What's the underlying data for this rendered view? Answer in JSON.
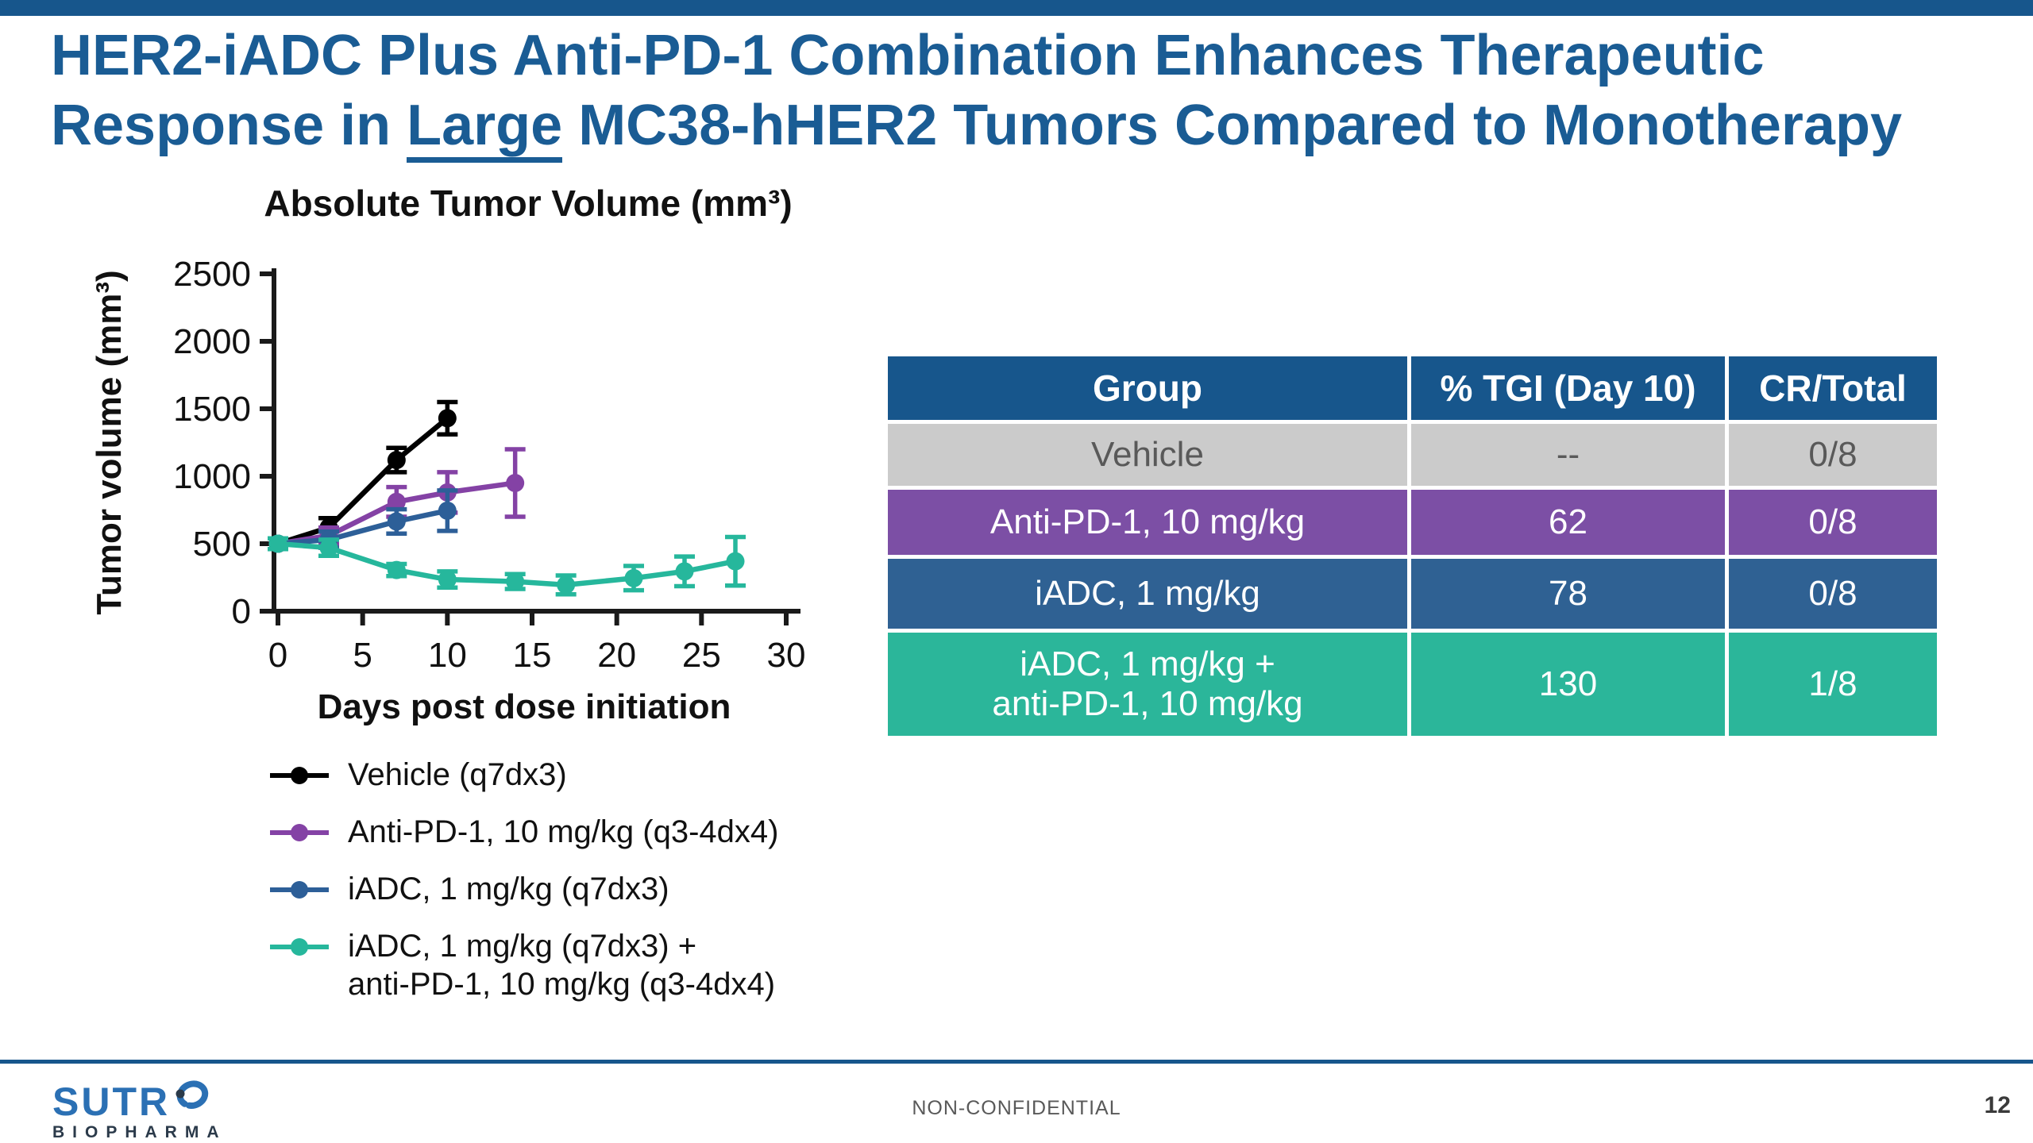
{
  "slide": {
    "title_line1": "HER2-iADC Plus Anti-PD-1 Combination Enhances Therapeutic",
    "title_line2_prefix": "Response in ",
    "title_line2_underlined": "Large",
    "title_line2_suffix": " MC38-hHER2 Tumors Compared to Monotherapy",
    "title_color": "#1A5C94",
    "brand_blue": "#17568C"
  },
  "chart_data": {
    "type": "line",
    "title": "Absolute Tumor Volume (mm³)",
    "xlabel": "Days post dose initiation",
    "ylabel": "Tumor volume (mm³)",
    "xlim": [
      0,
      30
    ],
    "xticks": [
      0,
      5,
      10,
      15,
      20,
      25,
      30
    ],
    "ylim": [
      0,
      2500
    ],
    "yticks": [
      0,
      500,
      1000,
      1500,
      2000,
      2500
    ],
    "grid": false,
    "legend_position": "below-left",
    "series": [
      {
        "name": "Vehicle (q7dx3)",
        "color": "#000000",
        "x": [
          0,
          3,
          7,
          10
        ],
        "y": [
          500,
          620,
          1120,
          1430
        ],
        "err": [
          40,
          70,
          90,
          120
        ]
      },
      {
        "name": "Anti-PD-1, 10 mg/kg (q3-4dx4)",
        "color": "#8442A5",
        "x": [
          0,
          3,
          7,
          10,
          14
        ],
        "y": [
          500,
          560,
          810,
          880,
          950
        ],
        "err": [
          40,
          60,
          110,
          150,
          250
        ]
      },
      {
        "name": "iADC, 1 mg/kg (q7dx3)",
        "color": "#2D5F98",
        "x": [
          0,
          3,
          7,
          10
        ],
        "y": [
          500,
          530,
          665,
          745
        ],
        "err": [
          40,
          60,
          90,
          150
        ]
      },
      {
        "name": "iADC, 1 mg/kg (q7dx3) +\nanti-PD-1, 10 mg/kg (q3-4dx4)",
        "color": "#26B79C",
        "x": [
          0,
          3,
          7,
          10,
          14,
          17,
          21,
          24,
          27
        ],
        "y": [
          500,
          470,
          305,
          235,
          220,
          195,
          245,
          295,
          370
        ],
        "err": [
          40,
          60,
          45,
          60,
          55,
          70,
          90,
          110,
          180
        ]
      }
    ]
  },
  "table": {
    "header": [
      "Group",
      "% TGI (Day 10)",
      "CR/Total"
    ],
    "header_bg": "#17568C",
    "header_text_color": "#FFFFFF",
    "rows": [
      {
        "cells": [
          "Vehicle",
          "--",
          "0/8"
        ],
        "bg": "#CBCBCB",
        "text_color": "#595959"
      },
      {
        "cells": [
          "Anti-PD-1, 10 mg/kg",
          "62",
          "0/8"
        ],
        "bg": "#7C4FA5",
        "text_color": "#FFFFFF"
      },
      {
        "cells": [
          "iADC, 1 mg/kg",
          "78",
          "0/8"
        ],
        "bg": "#2F6193",
        "text_color": "#FFFFFF"
      },
      {
        "cells": [
          "iADC, 1 mg/kg +\nanti-PD-1, 10 mg/kg",
          "130",
          "1/8"
        ],
        "bg": "#2BB69A",
        "text_color": "#FFFFFF"
      }
    ]
  },
  "footer": {
    "logo_line1": "SUTR",
    "logo_line2": "BIOPHARMA",
    "logo_blue": "#2B70B4",
    "logo_dark": "#2B3A4A",
    "classification": "NON-CONFIDENTIAL",
    "page_number": "12"
  }
}
